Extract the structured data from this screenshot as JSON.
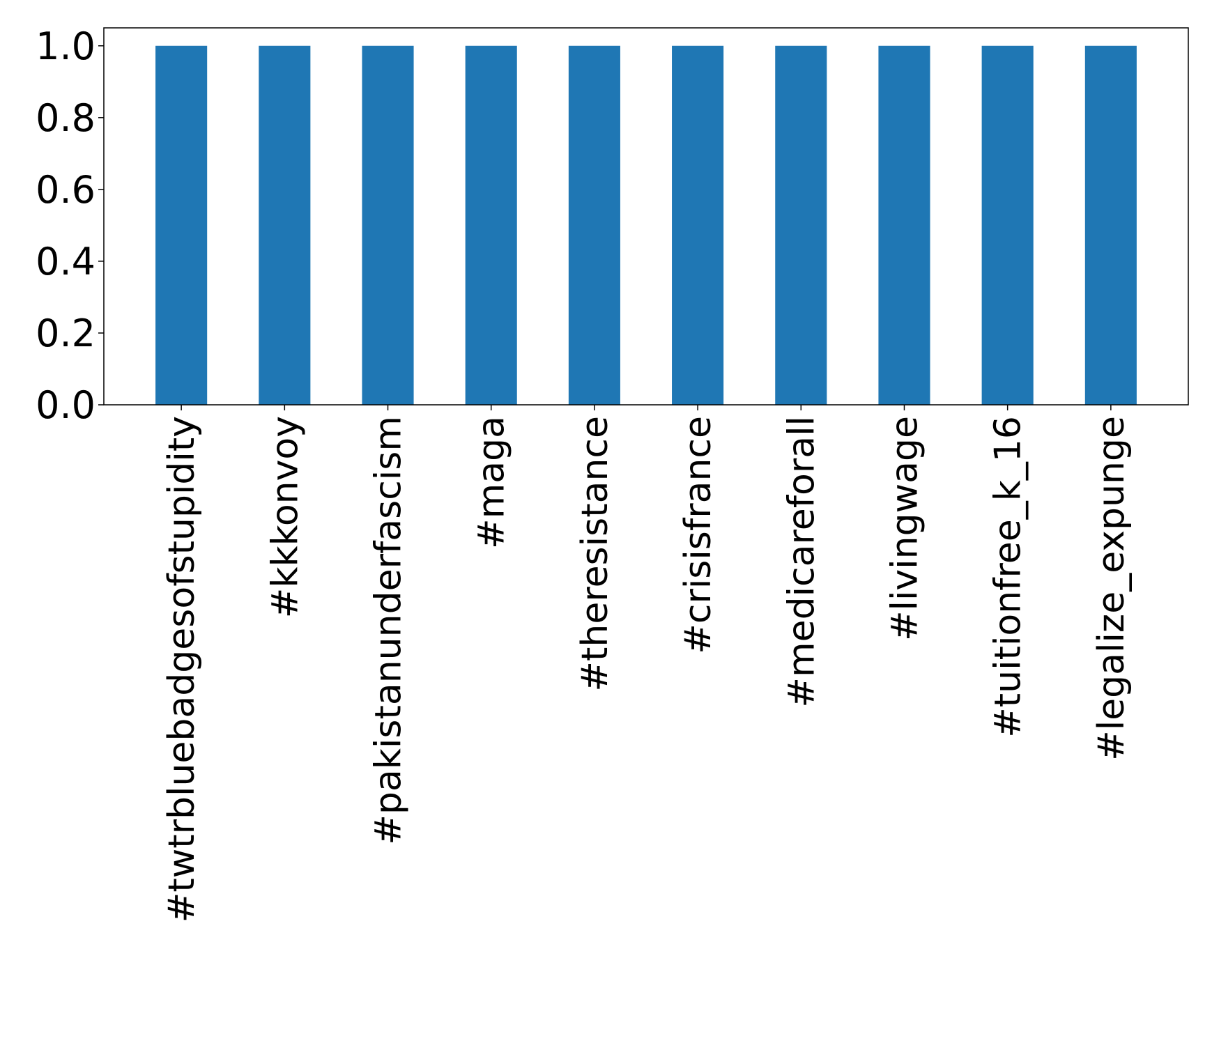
{
  "chart_data": {
    "type": "bar",
    "title": "",
    "xlabel": "",
    "ylabel": "",
    "categories": [
      "#twtrbluebadgesofstupidity",
      "#kkkonvoy",
      "#pakistanunderfascism",
      "#maga",
      "#theresistance",
      "#crisisfrance",
      "#medicareforall",
      "#livingwage",
      "#tuitionfree_k_16",
      "#legalize_expunge"
    ],
    "values": [
      1.0,
      1.0,
      1.0,
      1.0,
      1.0,
      1.0,
      1.0,
      1.0,
      1.0,
      1.0
    ],
    "ylim": [
      0,
      1.05
    ],
    "yticks": [
      0.0,
      0.2,
      0.4,
      0.6,
      0.8,
      1.0
    ],
    "ytick_labels": [
      "0.0",
      "0.2",
      "0.4",
      "0.6",
      "0.8",
      "1.0"
    ],
    "grid": false,
    "legend": "none",
    "bar_color": "#1f77b4"
  }
}
